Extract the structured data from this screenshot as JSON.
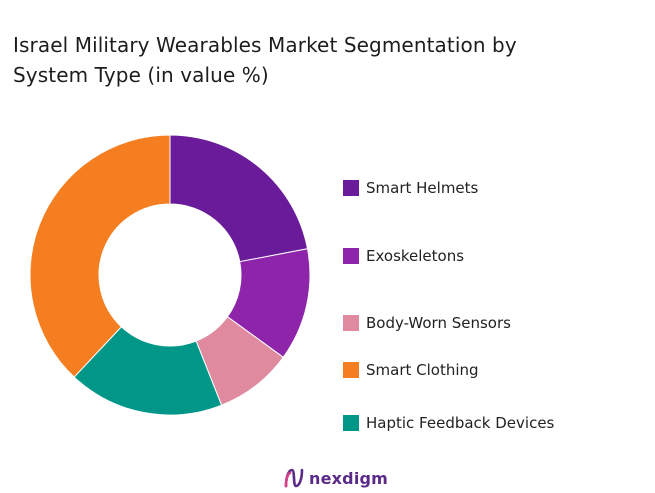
{
  "chart_data": {
    "type": "pie",
    "title_lines": [
      "Israel Military Wearables Market Segmentation by",
      "System Type (in value %)"
    ],
    "categories": [
      "Smart Helmets",
      "Exoskeletons",
      "Body-Worn Sensors",
      "Smart Clothing",
      "Haptic Feedback Devices"
    ],
    "values": [
      22,
      13,
      9,
      38,
      18
    ],
    "slice_order": [
      0,
      1,
      2,
      4,
      3
    ],
    "colors": [
      "#6a1b9a",
      "#8e24aa",
      "#e08aa0",
      "#f57f20",
      "#009688"
    ],
    "legend_position": "right",
    "hole": true
  },
  "branding": {
    "logo_text": "nexdigm"
  }
}
